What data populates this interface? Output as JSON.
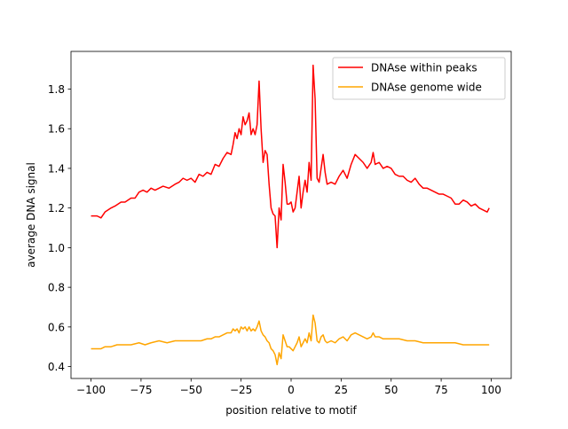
{
  "chart_data": {
    "type": "line",
    "title": "",
    "xlabel": "position relative to motif",
    "ylabel": "average DNA signal",
    "xlim": [
      -110,
      110
    ],
    "ylim": [
      0.34,
      1.99
    ],
    "x_ticks": [
      -100,
      -75,
      -50,
      -25,
      0,
      25,
      50,
      75,
      100
    ],
    "x_tick_labels": [
      "−100",
      "−75",
      "−50",
      "−25",
      "0",
      "25",
      "50",
      "75",
      "100"
    ],
    "y_ticks": [
      0.4,
      0.6,
      0.8,
      1.0,
      1.2,
      1.4,
      1.6,
      1.8
    ],
    "y_tick_labels": [
      "0.4",
      "0.6",
      "0.8",
      "1.0",
      "1.2",
      "1.4",
      "1.6",
      "1.8"
    ],
    "grid": false,
    "legend_position": "top-right",
    "series": [
      {
        "name": "DNAse within peaks",
        "color": "#ff0000",
        "points": [
          [
            -100,
            1.16
          ],
          [
            -97,
            1.16
          ],
          [
            -95,
            1.15
          ],
          [
            -93,
            1.18
          ],
          [
            -90,
            1.2
          ],
          [
            -88,
            1.21
          ],
          [
            -85,
            1.23
          ],
          [
            -83,
            1.23
          ],
          [
            -80,
            1.25
          ],
          [
            -78,
            1.25
          ],
          [
            -76,
            1.28
          ],
          [
            -74,
            1.29
          ],
          [
            -72,
            1.28
          ],
          [
            -70,
            1.3
          ],
          [
            -68,
            1.29
          ],
          [
            -66,
            1.3
          ],
          [
            -64,
            1.31
          ],
          [
            -61,
            1.3
          ],
          [
            -58,
            1.32
          ],
          [
            -56,
            1.33
          ],
          [
            -54,
            1.35
          ],
          [
            -52,
            1.34
          ],
          [
            -50,
            1.35
          ],
          [
            -48,
            1.33
          ],
          [
            -46,
            1.37
          ],
          [
            -44,
            1.36
          ],
          [
            -42,
            1.38
          ],
          [
            -40,
            1.37
          ],
          [
            -38,
            1.42
          ],
          [
            -36,
            1.41
          ],
          [
            -34,
            1.45
          ],
          [
            -32,
            1.48
          ],
          [
            -30,
            1.47
          ],
          [
            -29,
            1.52
          ],
          [
            -28,
            1.58
          ],
          [
            -27,
            1.55
          ],
          [
            -26,
            1.6
          ],
          [
            -25,
            1.57
          ],
          [
            -24,
            1.66
          ],
          [
            -23,
            1.62
          ],
          [
            -22,
            1.64
          ],
          [
            -21,
            1.68
          ],
          [
            -20,
            1.57
          ],
          [
            -19,
            1.6
          ],
          [
            -18,
            1.57
          ],
          [
            -17,
            1.62
          ],
          [
            -16,
            1.84
          ],
          [
            -15,
            1.6
          ],
          [
            -14,
            1.43
          ],
          [
            -13,
            1.49
          ],
          [
            -12,
            1.47
          ],
          [
            -11,
            1.32
          ],
          [
            -10,
            1.2
          ],
          [
            -9,
            1.17
          ],
          [
            -8,
            1.16
          ],
          [
            -7,
            1.0
          ],
          [
            -6,
            1.2
          ],
          [
            -5,
            1.14
          ],
          [
            -4,
            1.42
          ],
          [
            -3,
            1.33
          ],
          [
            -2,
            1.22
          ],
          [
            -1,
            1.22
          ],
          [
            0,
            1.23
          ],
          [
            1,
            1.18
          ],
          [
            2,
            1.2
          ],
          [
            3,
            1.28
          ],
          [
            4,
            1.36
          ],
          [
            5,
            1.2
          ],
          [
            6,
            1.28
          ],
          [
            7,
            1.34
          ],
          [
            8,
            1.28
          ],
          [
            9,
            1.43
          ],
          [
            10,
            1.34
          ],
          [
            11,
            1.92
          ],
          [
            12,
            1.75
          ],
          [
            13,
            1.35
          ],
          [
            14,
            1.33
          ],
          [
            15,
            1.4
          ],
          [
            16,
            1.47
          ],
          [
            17,
            1.38
          ],
          [
            18,
            1.32
          ],
          [
            20,
            1.33
          ],
          [
            22,
            1.32
          ],
          [
            24,
            1.36
          ],
          [
            26,
            1.39
          ],
          [
            28,
            1.35
          ],
          [
            30,
            1.42
          ],
          [
            32,
            1.47
          ],
          [
            34,
            1.45
          ],
          [
            36,
            1.43
          ],
          [
            38,
            1.4
          ],
          [
            40,
            1.43
          ],
          [
            41,
            1.48
          ],
          [
            42,
            1.42
          ],
          [
            44,
            1.43
          ],
          [
            46,
            1.4
          ],
          [
            48,
            1.41
          ],
          [
            50,
            1.4
          ],
          [
            52,
            1.37
          ],
          [
            54,
            1.36
          ],
          [
            56,
            1.36
          ],
          [
            58,
            1.34
          ],
          [
            60,
            1.33
          ],
          [
            62,
            1.35
          ],
          [
            64,
            1.32
          ],
          [
            66,
            1.3
          ],
          [
            68,
            1.3
          ],
          [
            70,
            1.29
          ],
          [
            72,
            1.28
          ],
          [
            74,
            1.27
          ],
          [
            76,
            1.27
          ],
          [
            78,
            1.26
          ],
          [
            80,
            1.25
          ],
          [
            82,
            1.22
          ],
          [
            84,
            1.22
          ],
          [
            86,
            1.24
          ],
          [
            88,
            1.23
          ],
          [
            90,
            1.21
          ],
          [
            92,
            1.22
          ],
          [
            94,
            1.2
          ],
          [
            96,
            1.19
          ],
          [
            98,
            1.18
          ],
          [
            99,
            1.2
          ]
        ]
      },
      {
        "name": "DNAse genome wide",
        "color": "#ffa500",
        "points": [
          [
            -100,
            0.49
          ],
          [
            -97,
            0.49
          ],
          [
            -95,
            0.49
          ],
          [
            -93,
            0.5
          ],
          [
            -90,
            0.5
          ],
          [
            -87,
            0.51
          ],
          [
            -84,
            0.51
          ],
          [
            -80,
            0.51
          ],
          [
            -76,
            0.52
          ],
          [
            -73,
            0.51
          ],
          [
            -70,
            0.52
          ],
          [
            -66,
            0.53
          ],
          [
            -62,
            0.52
          ],
          [
            -58,
            0.53
          ],
          [
            -55,
            0.53
          ],
          [
            -52,
            0.53
          ],
          [
            -48,
            0.53
          ],
          [
            -45,
            0.53
          ],
          [
            -42,
            0.54
          ],
          [
            -40,
            0.54
          ],
          [
            -38,
            0.55
          ],
          [
            -36,
            0.55
          ],
          [
            -34,
            0.56
          ],
          [
            -32,
            0.57
          ],
          [
            -30,
            0.57
          ],
          [
            -29,
            0.59
          ],
          [
            -28,
            0.58
          ],
          [
            -27,
            0.59
          ],
          [
            -26,
            0.57
          ],
          [
            -25,
            0.6
          ],
          [
            -24,
            0.59
          ],
          [
            -23,
            0.6
          ],
          [
            -22,
            0.58
          ],
          [
            -21,
            0.6
          ],
          [
            -20,
            0.58
          ],
          [
            -19,
            0.59
          ],
          [
            -18,
            0.58
          ],
          [
            -17,
            0.6
          ],
          [
            -16,
            0.63
          ],
          [
            -15,
            0.58
          ],
          [
            -14,
            0.56
          ],
          [
            -13,
            0.55
          ],
          [
            -12,
            0.53
          ],
          [
            -11,
            0.52
          ],
          [
            -10,
            0.49
          ],
          [
            -9,
            0.48
          ],
          [
            -8,
            0.46
          ],
          [
            -7,
            0.41
          ],
          [
            -6,
            0.47
          ],
          [
            -5,
            0.44
          ],
          [
            -4,
            0.56
          ],
          [
            -3,
            0.53
          ],
          [
            -2,
            0.5
          ],
          [
            -1,
            0.5
          ],
          [
            0,
            0.49
          ],
          [
            1,
            0.48
          ],
          [
            2,
            0.5
          ],
          [
            3,
            0.52
          ],
          [
            4,
            0.55
          ],
          [
            5,
            0.5
          ],
          [
            6,
            0.52
          ],
          [
            7,
            0.54
          ],
          [
            8,
            0.52
          ],
          [
            9,
            0.57
          ],
          [
            10,
            0.53
          ],
          [
            11,
            0.66
          ],
          [
            12,
            0.62
          ],
          [
            13,
            0.53
          ],
          [
            14,
            0.52
          ],
          [
            15,
            0.55
          ],
          [
            16,
            0.56
          ],
          [
            17,
            0.53
          ],
          [
            18,
            0.52
          ],
          [
            20,
            0.53
          ],
          [
            22,
            0.52
          ],
          [
            24,
            0.54
          ],
          [
            26,
            0.55
          ],
          [
            28,
            0.53
          ],
          [
            30,
            0.56
          ],
          [
            32,
            0.57
          ],
          [
            34,
            0.56
          ],
          [
            36,
            0.55
          ],
          [
            38,
            0.54
          ],
          [
            40,
            0.55
          ],
          [
            41,
            0.57
          ],
          [
            42,
            0.55
          ],
          [
            44,
            0.55
          ],
          [
            46,
            0.54
          ],
          [
            48,
            0.54
          ],
          [
            50,
            0.54
          ],
          [
            54,
            0.54
          ],
          [
            58,
            0.53
          ],
          [
            62,
            0.53
          ],
          [
            66,
            0.52
          ],
          [
            70,
            0.52
          ],
          [
            74,
            0.52
          ],
          [
            78,
            0.52
          ],
          [
            82,
            0.52
          ],
          [
            86,
            0.51
          ],
          [
            90,
            0.51
          ],
          [
            94,
            0.51
          ],
          [
            98,
            0.51
          ],
          [
            99,
            0.51
          ]
        ]
      }
    ]
  }
}
